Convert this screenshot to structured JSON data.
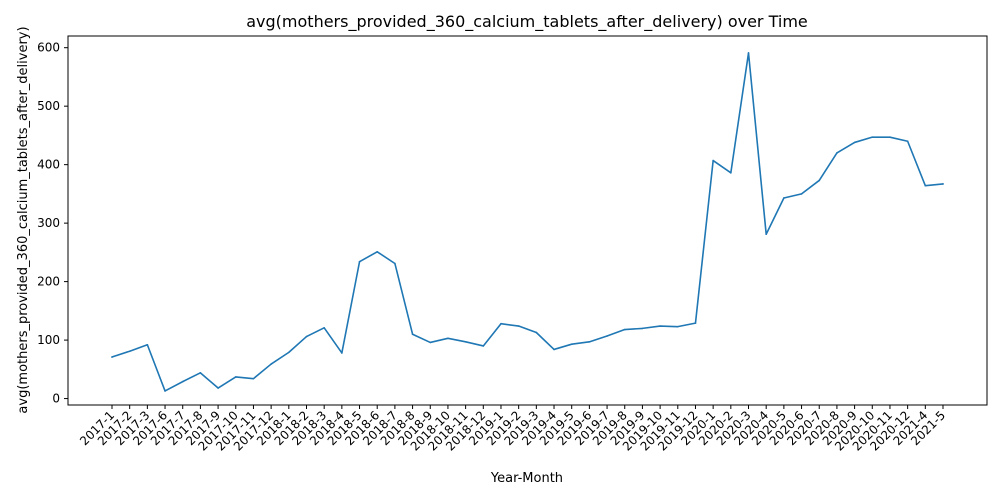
{
  "chart_data": {
    "type": "line",
    "title": "avg(mothers_provided_360_calcium_tablets_after_delivery) over Time",
    "xlabel": "Year-Month",
    "ylabel": "avg(mothers_provided_360_calcium_tablets_after_delivery)",
    "ylim": [
      -11,
      620
    ],
    "yticks": [
      0,
      100,
      200,
      300,
      400,
      500,
      600
    ],
    "grid": false,
    "categories": [
      "2017-1",
      "2017-2",
      "2017-3",
      "2017-6",
      "2017-7",
      "2017-8",
      "2017-9",
      "2017-10",
      "2017-11",
      "2017-12",
      "2018-1",
      "2018-2",
      "2018-3",
      "2018-4",
      "2018-5",
      "2018-6",
      "2018-7",
      "2018-8",
      "2018-9",
      "2018-10",
      "2018-11",
      "2018-12",
      "2019-1",
      "2019-2",
      "2019-3",
      "2019-4",
      "2019-5",
      "2019-6",
      "2019-7",
      "2019-8",
      "2019-9",
      "2019-10",
      "2019-11",
      "2019-12",
      "2020-1",
      "2020-2",
      "2020-3",
      "2020-4",
      "2020-5",
      "2020-6",
      "2020-7",
      "2020-8",
      "2020-9",
      "2020-10",
      "2020-11",
      "2020-12",
      "2021-4",
      "2021-5"
    ],
    "series": [
      {
        "color": "#1f77b4",
        "values": [
          71,
          81,
          92,
          13,
          29,
          44,
          18,
          37,
          34,
          59,
          79,
          106,
          121,
          78,
          234,
          251,
          231,
          110,
          96,
          103,
          97,
          90,
          128,
          124,
          113,
          84,
          93,
          97,
          107,
          118,
          120,
          124,
          123,
          129,
          407,
          386,
          591,
          281,
          343,
          350,
          373,
          420,
          438,
          447,
          447,
          440,
          364,
          367
        ]
      }
    ]
  }
}
